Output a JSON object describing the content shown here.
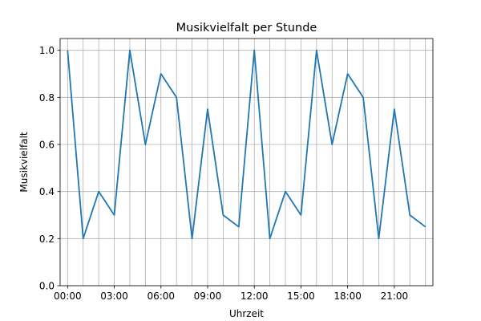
{
  "chart_data": {
    "type": "line",
    "title": "Musikvielfalt per Stunde",
    "xlabel": "Uhrzeit",
    "ylabel": "Musikvielfalt",
    "x": [
      0,
      1,
      2,
      3,
      4,
      5,
      6,
      7,
      8,
      9,
      10,
      11,
      12,
      13,
      14,
      15,
      16,
      17,
      18,
      19,
      20,
      21,
      22,
      23
    ],
    "x_tick_values": [
      0,
      3,
      6,
      9,
      12,
      15,
      18,
      21
    ],
    "x_tick_labels": [
      "00:00",
      "03:00",
      "06:00",
      "09:00",
      "12:00",
      "15:00",
      "18:00",
      "21:00"
    ],
    "y_tick_values": [
      0.0,
      0.2,
      0.4,
      0.6,
      0.8,
      1.0
    ],
    "y_tick_labels": [
      "0.0",
      "0.2",
      "0.4",
      "0.6",
      "0.8",
      "1.0"
    ],
    "series": [
      {
        "values": [
          1.0,
          0.2,
          0.4,
          0.3,
          1.0,
          0.6,
          0.9,
          0.8,
          0.2,
          0.75,
          0.3,
          0.25,
          1.0,
          0.2,
          0.4,
          0.3,
          1.0,
          0.6,
          0.9,
          0.8,
          0.2,
          0.75,
          0.3,
          0.25
        ]
      }
    ],
    "xlim": [
      -0.48,
      23.48
    ],
    "ylim": [
      0,
      1.05
    ],
    "grid": true,
    "grid_x_every_hour": true,
    "colors": {
      "line": "#1f77b4",
      "grid": "#b0b0b0",
      "axis": "#000000"
    }
  }
}
